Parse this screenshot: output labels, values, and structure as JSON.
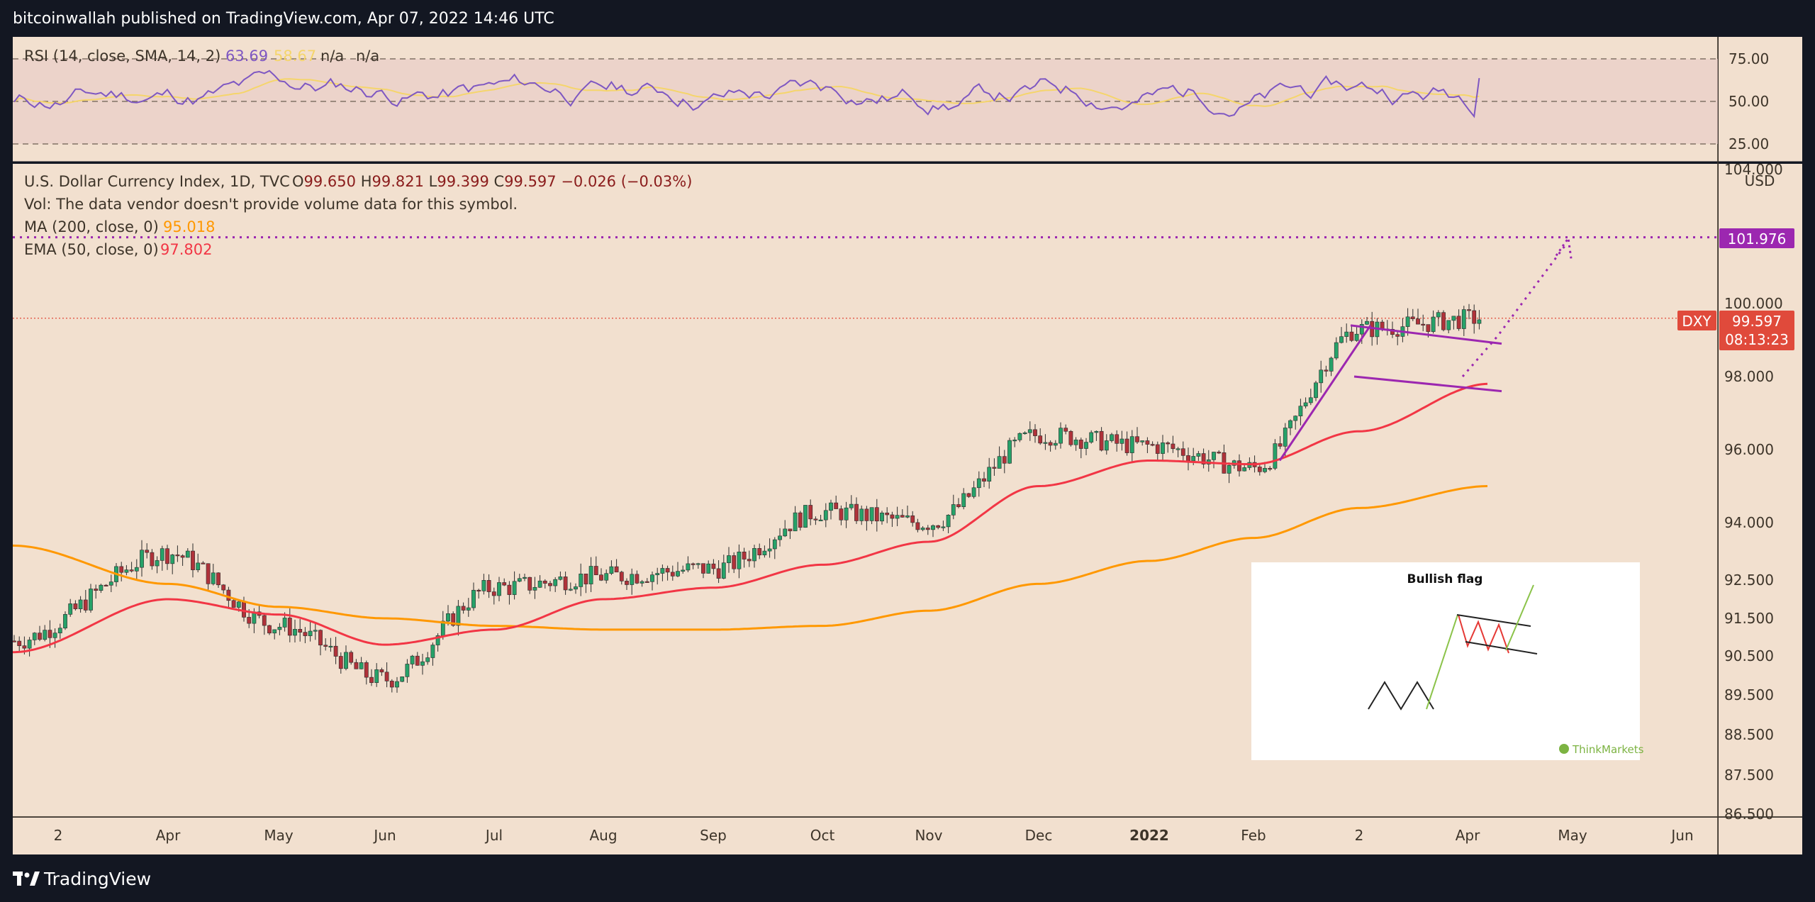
{
  "header": {
    "publisher_line": "bitcoinwallah published on TradingView.com, Apr 07, 2022 14:46 UTC"
  },
  "footer": {
    "brand": "TradingView"
  },
  "rsi_panel": {
    "label": "RSI (14, close, SMA, 14, 2)",
    "value1": "63.69",
    "value2": "58.67",
    "value3": "n/a",
    "value4": "n/a",
    "ticks": [
      "75.00",
      "50.00",
      "25.00"
    ],
    "colors": {
      "rsi": "#7e57c2",
      "sma": "#f5d56b",
      "band": "#e8c9c6"
    }
  },
  "main_panel": {
    "symbol_title": "U.S. Dollar Currency Index, 1D, TVC",
    "ohlc": [
      {
        "key": "O",
        "val": "99.650"
      },
      {
        "key": "H",
        "val": "99.821"
      },
      {
        "key": "L",
        "val": "99.399"
      },
      {
        "key": "C",
        "val": "99.597"
      }
    ],
    "change": "−0.026 (−0.03%)",
    "volume_note": "Vol: The data vendor doesn't provide volume data for this symbol.",
    "ma_label": "MA (200, close, 0)",
    "ma_value": "95.018",
    "ema_label": "EMA (50, close, 0)",
    "ema_value": "97.802",
    "currency": "USD",
    "price_ticks": [
      "104.000",
      "100.000",
      "98.000",
      "96.000",
      "94.000",
      "92.500",
      "91.500",
      "90.500",
      "89.500",
      "88.500",
      "87.500",
      "86.500"
    ],
    "time_labels": [
      "2",
      "Apr",
      "May",
      "Jun",
      "Jul",
      "Aug",
      "Sep",
      "Oct",
      "Nov",
      "Dec",
      "2022",
      "Feb",
      "2",
      "Apr",
      "May",
      "Jun"
    ],
    "target_label": "101.976",
    "symbol_badge": "DXY",
    "last_price": "99.597",
    "countdown": "08:13:23",
    "colors": {
      "background": "#f2e0cf",
      "up": "#26a269",
      "down": "#b0323a",
      "ma": "#ff9800",
      "ema": "#f23645",
      "pattern": "#9c27b0",
      "target": "#9c27b0"
    }
  },
  "inset": {
    "title": "Bullish flag",
    "brand": "ThinkMarkets"
  },
  "chart_data": {
    "type": "line",
    "title": "U.S. Dollar Currency Index, 1D, TVC",
    "x": [
      "2",
      "Apr",
      "May",
      "Jun",
      "Jul",
      "Aug",
      "Sep",
      "Oct",
      "Nov",
      "Dec",
      "2022",
      "Feb",
      "2",
      "Apr"
    ],
    "series": [
      {
        "name": "",
        "values": [
          90.9,
          93.2,
          91.3,
          89.9,
          92.3,
          92.6,
          92.8,
          94.3,
          94.0,
          96.4,
          96.1,
          95.5,
          99.3,
          99.6
        ]
      },
      {
        "name": "MA (200, close, 0)",
        "values": [
          93.4,
          92.4,
          91.8,
          91.5,
          91.3,
          91.2,
          91.2,
          91.3,
          91.7,
          92.4,
          93.0,
          93.6,
          94.4,
          95.0
        ]
      },
      {
        "name": "EMA (50, close, 0)",
        "values": [
          90.6,
          92.0,
          91.6,
          90.8,
          91.2,
          92.0,
          92.3,
          92.9,
          93.5,
          95.0,
          95.7,
          95.6,
          96.5,
          97.8
        ]
      }
    ],
    "y_ticks": [
      86.5,
      87.5,
      88.5,
      89.5,
      90.5,
      91.5,
      92.5,
      94.0,
      96.0,
      98.0,
      100.0,
      104.0
    ],
    "last_close": 99.597,
    "target": 101.976,
    "rsi_panel": {
      "label": "RSI (14, close, SMA, 14, 2)",
      "ylim": [
        25,
        75
      ],
      "last_rsi": 63.69,
      "last_sma": 58.67
    }
  }
}
